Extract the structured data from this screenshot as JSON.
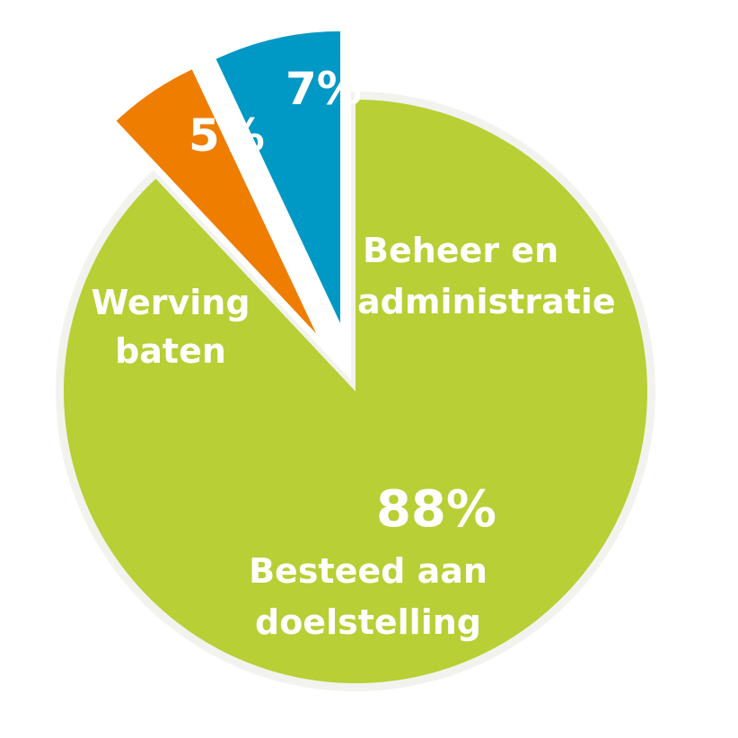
{
  "chart_data": {
    "type": "pie",
    "slices": [
      {
        "label_lines": [
          "Besteed aan",
          "doelstelling"
        ],
        "value": 88,
        "value_label": "88%",
        "color": "#b8cf35",
        "exploded": false
      },
      {
        "label_lines": [
          "Werving",
          "baten"
        ],
        "value": 5,
        "value_label": "5%",
        "color": "#ee7d00",
        "exploded": true
      },
      {
        "label_lines": [
          "Beheer en",
          "administratie"
        ],
        "value": 7,
        "value_label": "7%",
        "color": "#0098c4",
        "exploded": true
      }
    ]
  }
}
